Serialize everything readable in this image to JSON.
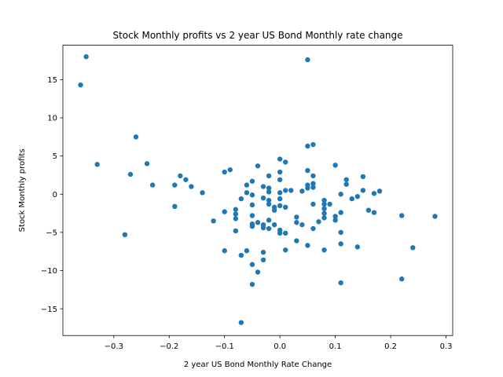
{
  "chart_data": {
    "type": "scatter",
    "title": "Stock Monthly profits vs 2 year US Bond Monthly rate change",
    "xlabel": "2 year US Bond Monthly Rate Change",
    "ylabel": "Stock Monthly profits",
    "xlim": [
      -0.392,
      0.312
    ],
    "ylim": [
      -18.5,
      19.5
    ],
    "xticks": [
      -0.3,
      -0.2,
      -0.1,
      0.0,
      0.1,
      0.2,
      0.3
    ],
    "xtick_labels": [
      "−0.3",
      "−0.2",
      "−0.1",
      "0.0",
      "0.1",
      "0.2",
      "0.3"
    ],
    "yticks": [
      -15,
      -10,
      -5,
      0,
      5,
      10,
      15
    ],
    "ytick_labels": [
      "−15",
      "−10",
      "−5",
      "0",
      "5",
      "10",
      "15"
    ],
    "grid": false,
    "marker_color": "#1f77b4",
    "points": [
      [
        -0.36,
        14.3
      ],
      [
        -0.35,
        18.0
      ],
      [
        -0.33,
        3.9
      ],
      [
        -0.28,
        -5.3
      ],
      [
        -0.27,
        2.6
      ],
      [
        -0.26,
        7.5
      ],
      [
        -0.24,
        4.0
      ],
      [
        -0.23,
        1.2
      ],
      [
        -0.19,
        1.2
      ],
      [
        -0.19,
        -1.6
      ],
      [
        -0.18,
        2.4
      ],
      [
        -0.17,
        1.9
      ],
      [
        -0.16,
        1.0
      ],
      [
        -0.14,
        0.2
      ],
      [
        -0.12,
        -3.5
      ],
      [
        -0.1,
        2.9
      ],
      [
        -0.1,
        -2.3
      ],
      [
        -0.1,
        -7.4
      ],
      [
        -0.09,
        3.2
      ],
      [
        -0.08,
        -2.0
      ],
      [
        -0.08,
        -2.6
      ],
      [
        -0.08,
        -3.2
      ],
      [
        -0.08,
        -4.8
      ],
      [
        -0.07,
        -0.6
      ],
      [
        -0.07,
        -8.0
      ],
      [
        -0.07,
        -16.8
      ],
      [
        -0.06,
        1.2
      ],
      [
        -0.06,
        0.2
      ],
      [
        -0.06,
        -7.4
      ],
      [
        -0.05,
        1.7
      ],
      [
        -0.05,
        -0.1
      ],
      [
        -0.05,
        -1.4
      ],
      [
        -0.05,
        -2.8
      ],
      [
        -0.05,
        -3.9
      ],
      [
        -0.05,
        -4.2
      ],
      [
        -0.05,
        -9.2
      ],
      [
        -0.05,
        -11.8
      ],
      [
        -0.04,
        3.7
      ],
      [
        -0.04,
        -3.7
      ],
      [
        -0.04,
        -10.2
      ],
      [
        -0.03,
        1.0
      ],
      [
        -0.03,
        -0.5
      ],
      [
        -0.03,
        -4.0
      ],
      [
        -0.03,
        -4.4
      ],
      [
        -0.03,
        -7.6
      ],
      [
        -0.03,
        -8.6
      ],
      [
        -0.02,
        2.4
      ],
      [
        -0.02,
        0.8
      ],
      [
        -0.02,
        0.3
      ],
      [
        -0.02,
        -0.8
      ],
      [
        -0.02,
        -1.3
      ],
      [
        -0.02,
        -3.4
      ],
      [
        -0.02,
        -4.5
      ],
      [
        -0.01,
        -1.7
      ],
      [
        -0.01,
        -2.1
      ],
      [
        -0.01,
        -4.0
      ],
      [
        0.0,
        4.6
      ],
      [
        0.0,
        2.9
      ],
      [
        0.0,
        1.9
      ],
      [
        0.0,
        0.2
      ],
      [
        0.0,
        -0.6
      ],
      [
        0.0,
        -1.5
      ],
      [
        0.0,
        -4.7
      ],
      [
        0.0,
        -5.1
      ],
      [
        0.01,
        4.2
      ],
      [
        0.01,
        0.5
      ],
      [
        0.01,
        -1.7
      ],
      [
        0.01,
        -5.1
      ],
      [
        0.01,
        -7.3
      ],
      [
        0.02,
        0.5
      ],
      [
        0.03,
        -3.0
      ],
      [
        0.03,
        -3.7
      ],
      [
        0.03,
        -6.1
      ],
      [
        0.04,
        0.4
      ],
      [
        0.04,
        -4.0
      ],
      [
        0.05,
        17.6
      ],
      [
        0.05,
        6.3
      ],
      [
        0.05,
        3.1
      ],
      [
        0.05,
        1.2
      ],
      [
        0.05,
        0.8
      ],
      [
        0.05,
        -6.7
      ],
      [
        0.06,
        6.5
      ],
      [
        0.06,
        2.4
      ],
      [
        0.06,
        1.4
      ],
      [
        0.06,
        0.9
      ],
      [
        0.06,
        -1.3
      ],
      [
        0.06,
        -4.5
      ],
      [
        0.07,
        -3.6
      ],
      [
        0.08,
        -0.8
      ],
      [
        0.08,
        -1.3
      ],
      [
        0.08,
        -1.9
      ],
      [
        0.08,
        -2.5
      ],
      [
        0.08,
        -3.1
      ],
      [
        0.08,
        -7.3
      ],
      [
        0.09,
        -1.3
      ],
      [
        0.1,
        3.8
      ],
      [
        0.1,
        -2.9
      ],
      [
        0.1,
        -3.4
      ],
      [
        0.11,
        0.0
      ],
      [
        0.11,
        -2.4
      ],
      [
        0.11,
        -5.0
      ],
      [
        0.11,
        -6.5
      ],
      [
        0.11,
        -11.6
      ],
      [
        0.12,
        1.9
      ],
      [
        0.12,
        1.3
      ],
      [
        0.13,
        -0.6
      ],
      [
        0.14,
        -0.3
      ],
      [
        0.14,
        -6.9
      ],
      [
        0.15,
        2.3
      ],
      [
        0.15,
        0.5
      ],
      [
        0.16,
        -2.1
      ],
      [
        0.17,
        0.1
      ],
      [
        0.17,
        -2.4
      ],
      [
        0.18,
        0.4
      ],
      [
        0.22,
        -2.8
      ],
      [
        0.22,
        -11.1
      ],
      [
        0.24,
        -7.0
      ],
      [
        0.28,
        -2.9
      ]
    ]
  }
}
